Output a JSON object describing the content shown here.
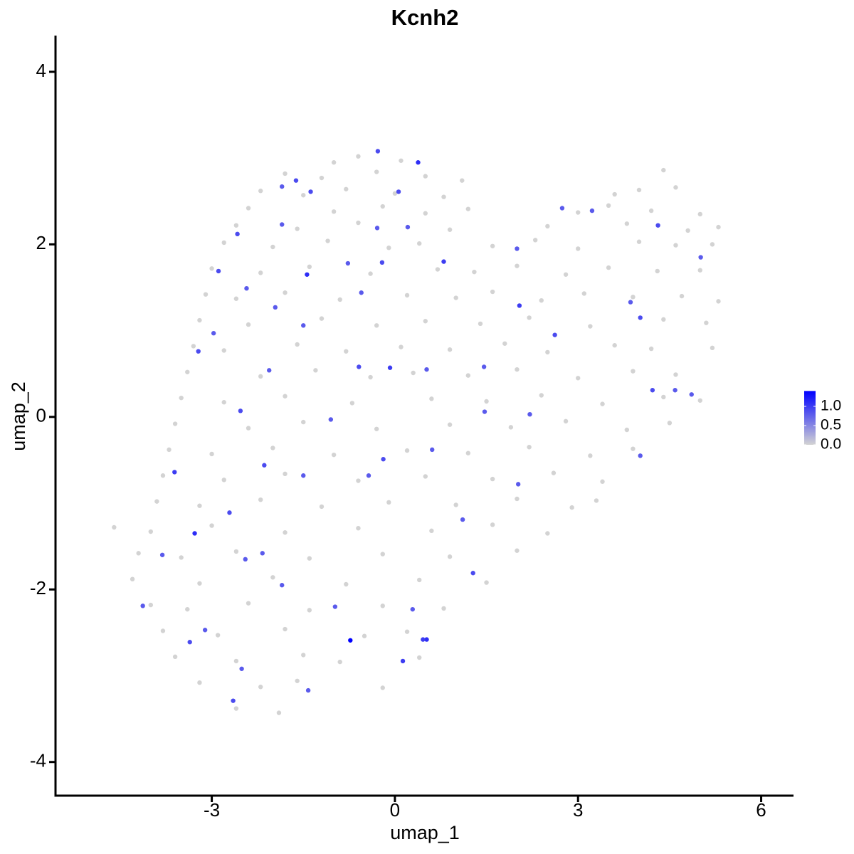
{
  "chart_data": {
    "type": "scatter",
    "title": "Kcnh2",
    "x_label": "umap_1",
    "y_label": "umap_2",
    "xlim": [
      -5.56,
      6.53
    ],
    "ylim": [
      -4.39,
      4.42
    ],
    "xticks": [
      -3,
      0,
      3,
      6
    ],
    "yticks": [
      -4,
      -2,
      0,
      2,
      4
    ],
    "colors": [
      "#d3d3d3",
      "#0000ff"
    ],
    "color_lim": [
      0,
      1.4
    ],
    "color_ticks": [
      {
        "value": 0,
        "label": "0.0"
      },
      {
        "value": 0.5,
        "label": "0.5"
      },
      {
        "value": 1.0,
        "label": "1.0"
      }
    ],
    "x": [
      -0.6,
      0.1,
      -1.0,
      -1.8,
      -1.2,
      -0.3,
      0.5,
      1.1,
      4.4,
      -2.2,
      -1.5,
      -0.8,
      0.0,
      0.8,
      3.6,
      4.0,
      4.6,
      -2.4,
      -1.0,
      -0.2,
      0.5,
      1.2,
      3.0,
      3.5,
      4.2,
      5.0,
      -2.6,
      -1.6,
      -0.6,
      0.9,
      2.5,
      3.8,
      4.8,
      5.3,
      -2.8,
      -2.0,
      -1.1,
      -0.1,
      0.4,
      1.6,
      2.3,
      3.0,
      4.0,
      4.6,
      5.2,
      -3.0,
      -2.2,
      -1.4,
      -0.4,
      0.7,
      1.3,
      2.0,
      2.8,
      3.5,
      4.3,
      5.0,
      -3.1,
      -2.6,
      -1.8,
      -0.9,
      0.2,
      1.0,
      1.6,
      2.4,
      3.1,
      3.9,
      4.7,
      5.3,
      -3.2,
      -2.4,
      -1.2,
      -0.3,
      0.5,
      1.4,
      2.2,
      3.2,
      4.4,
      5.1,
      -3.3,
      -2.8,
      -1.6,
      -0.8,
      0.1,
      0.9,
      1.8,
      2.5,
      3.6,
      4.2,
      5.2,
      -3.4,
      -2.2,
      -1.3,
      -0.4,
      0.3,
      1.2,
      2.0,
      3.0,
      3.9,
      4.6,
      -3.5,
      -2.8,
      -1.8,
      -0.7,
      0.6,
      1.5,
      2.4,
      3.4,
      4.4,
      5.0,
      -3.6,
      -2.4,
      -1.5,
      -0.3,
      0.9,
      1.9,
      2.8,
      3.8,
      4.5,
      -3.7,
      -3.0,
      -2.0,
      -1.0,
      0.2,
      1.2,
      2.2,
      3.2,
      3.9,
      -3.8,
      -2.8,
      -1.8,
      -0.6,
      0.5,
      1.6,
      2.6,
      3.4,
      -3.9,
      -3.2,
      -2.2,
      -1.2,
      -0.1,
      1.0,
      2.0,
      2.9,
      3.3,
      -4.6,
      -4.0,
      -3.0,
      -1.8,
      -0.6,
      0.6,
      1.6,
      2.5,
      -4.2,
      -3.5,
      -2.6,
      -1.4,
      -0.2,
      0.9,
      2.0,
      -4.3,
      -3.2,
      -2.0,
      -0.8,
      0.4,
      1.5,
      -4.0,
      -3.4,
      -2.4,
      -1.4,
      -0.2,
      0.8,
      -3.8,
      -2.9,
      -1.8,
      -0.5,
      0.2,
      -3.6,
      -2.6,
      -1.5,
      -0.9,
      0.4,
      -3.2,
      -2.2,
      -1.6,
      -0.2,
      -2.6,
      -1.9,
      -0.28,
      0.38,
      -1.62,
      -1.85,
      -1.38,
      0.06,
      -2.58,
      -1.85,
      -0.29,
      0.21,
      -2.89,
      -1.44,
      -0.77,
      -0.21,
      0.8,
      -2.43,
      -1.96,
      -1.5,
      -0.55,
      -3.22,
      -2.97,
      -2.06,
      -0.59,
      -0.08,
      0.52,
      1.46,
      -2.53,
      -1.05,
      -0.19,
      0.61,
      -3.61,
      -2.14,
      -1.5,
      -0.43,
      -3.28,
      -2.71,
      -2.45,
      -2.17,
      -1.85,
      -3.81,
      -4.13,
      -3.36,
      -3.11,
      -2.65,
      -2.51,
      -1.42,
      -0.73,
      0.13,
      0.52,
      0.46,
      1.28,
      1.11,
      2.02,
      2.21,
      2.62,
      2.04,
      2.0,
      2.74,
      3.23,
      4.02,
      3.86,
      4.31,
      5.01,
      4.86,
      4.59,
      4.02,
      4.22,
      1.47,
      -0.98,
      0.29
    ],
    "y": [
      3.02,
      2.97,
      2.95,
      2.82,
      2.77,
      2.84,
      2.79,
      2.74,
      2.86,
      2.62,
      2.57,
      2.64,
      2.59,
      2.55,
      2.58,
      2.63,
      2.66,
      2.42,
      2.38,
      2.44,
      2.36,
      2.41,
      2.37,
      2.45,
      2.39,
      2.35,
      2.22,
      2.18,
      2.25,
      2.17,
      2.21,
      2.24,
      2.16,
      2.2,
      2.02,
      1.97,
      2.04,
      1.96,
      2.01,
      1.98,
      2.05,
      1.95,
      2.03,
      1.99,
      2.0,
      1.72,
      1.67,
      1.74,
      1.66,
      1.71,
      1.68,
      1.75,
      1.65,
      1.73,
      1.69,
      1.7,
      1.42,
      1.37,
      1.44,
      1.36,
      1.41,
      1.38,
      1.45,
      1.35,
      1.43,
      1.39,
      1.4,
      1.34,
      1.12,
      1.07,
      1.14,
      1.06,
      1.11,
      1.08,
      1.15,
      1.05,
      1.13,
      1.09,
      0.82,
      0.77,
      0.84,
      0.76,
      0.81,
      0.78,
      0.85,
      0.75,
      0.83,
      0.79,
      0.8,
      0.52,
      0.47,
      0.54,
      0.46,
      0.51,
      0.48,
      0.55,
      0.45,
      0.53,
      0.49,
      0.22,
      0.17,
      0.24,
      0.16,
      0.21,
      0.18,
      0.25,
      0.15,
      0.23,
      0.19,
      -0.08,
      -0.13,
      -0.06,
      -0.14,
      -0.09,
      -0.12,
      -0.05,
      -0.15,
      -0.07,
      -0.38,
      -0.43,
      -0.36,
      -0.44,
      -0.39,
      -0.42,
      -0.35,
      -0.45,
      -0.37,
      -0.68,
      -0.73,
      -0.66,
      -0.74,
      -0.69,
      -0.72,
      -0.65,
      -0.75,
      -0.98,
      -1.03,
      -0.96,
      -1.04,
      -0.99,
      -1.02,
      -0.95,
      -1.05,
      -0.97,
      -1.28,
      -1.33,
      -1.26,
      -1.34,
      -1.29,
      -1.32,
      -1.25,
      -1.35,
      -1.58,
      -1.63,
      -1.56,
      -1.64,
      -1.59,
      -1.62,
      -1.55,
      -1.88,
      -1.93,
      -1.86,
      -1.94,
      -1.89,
      -1.92,
      -2.18,
      -2.23,
      -2.16,
      -2.24,
      -2.19,
      -2.22,
      -2.48,
      -2.53,
      -2.46,
      -2.54,
      -2.49,
      -2.78,
      -2.83,
      -2.76,
      -2.84,
      -2.79,
      -3.08,
      -3.13,
      -3.06,
      -3.14,
      -3.38,
      -3.43,
      3.08,
      2.95,
      2.74,
      2.67,
      2.61,
      2.61,
      2.12,
      2.23,
      2.19,
      2.2,
      1.69,
      1.65,
      1.78,
      1.79,
      1.8,
      1.49,
      1.27,
      1.06,
      1.44,
      0.76,
      0.97,
      0.54,
      0.58,
      0.57,
      0.55,
      0.58,
      0.07,
      -0.03,
      -0.49,
      -0.38,
      -0.64,
      -0.56,
      -0.68,
      -0.68,
      -1.35,
      -1.11,
      -1.65,
      -1.58,
      -1.95,
      -1.6,
      -2.19,
      -2.61,
      -2.47,
      -3.29,
      -2.92,
      -3.17,
      -2.59,
      -2.83,
      -2.58,
      -2.58,
      -1.81,
      -1.19,
      -0.78,
      0.03,
      0.95,
      1.29,
      1.95,
      2.42,
      2.39,
      1.15,
      1.33,
      2.22,
      1.85,
      0.26,
      0.31,
      -0.45,
      0.31,
      0.06,
      -2.2,
      -2.23
    ],
    "color_values": [
      0,
      0,
      0,
      0,
      0,
      0,
      0,
      0,
      0,
      0,
      0,
      0,
      0,
      0,
      0,
      0,
      0,
      0,
      0,
      0,
      0,
      0,
      0,
      0,
      0,
      0,
      0,
      0,
      0,
      0,
      0,
      0,
      0,
      0,
      0,
      0,
      0,
      0,
      0,
      0,
      0,
      0,
      0,
      0,
      0,
      0,
      0,
      0,
      0,
      0,
      0,
      0,
      0,
      0,
      0,
      0,
      0,
      0,
      0,
      0,
      0,
      0,
      0,
      0,
      0,
      0,
      0,
      0,
      0,
      0,
      0,
      0,
      0,
      0,
      0,
      0,
      0,
      0,
      0,
      0,
      0,
      0,
      0,
      0,
      0,
      0,
      0,
      0,
      0,
      0,
      0,
      0,
      0,
      0,
      0,
      0,
      0,
      0,
      0,
      0,
      0,
      0,
      0,
      0,
      0,
      0,
      0,
      0,
      0,
      0,
      0,
      0,
      0,
      0,
      0,
      0,
      0,
      0,
      0,
      0,
      0,
      0,
      0,
      0,
      0,
      0,
      0,
      0,
      0,
      0,
      0,
      0,
      0,
      0,
      0,
      0,
      0,
      0,
      0,
      0,
      0,
      0,
      0,
      0,
      0,
      0,
      0,
      0,
      0,
      0,
      0,
      0,
      0,
      0,
      0,
      0,
      0,
      0,
      0,
      0,
      0,
      0,
      0,
      0,
      0,
      0,
      0,
      0,
      0,
      0,
      0,
      0,
      0,
      0,
      0,
      0,
      0,
      0,
      0,
      0,
      0,
      0,
      0,
      0,
      0,
      0,
      0,
      0.9,
      1.1,
      0.9,
      0.8,
      0.9,
      0.9,
      0.9,
      0.8,
      0.8,
      0.8,
      0.9,
      1.1,
      0.8,
      0.9,
      1.0,
      0.8,
      0.8,
      0.8,
      0.8,
      0.9,
      0.8,
      0.8,
      0.9,
      1.0,
      0.8,
      0.8,
      0.9,
      0.8,
      0.9,
      0.8,
      1.0,
      0.9,
      0.8,
      0.8,
      1.1,
      0.9,
      0.8,
      0.8,
      0.8,
      0.8,
      0.8,
      0.9,
      0.8,
      0.9,
      0.8,
      0.8,
      1.4,
      1.0,
      1.1,
      1.0,
      0.9,
      0.8,
      0.8,
      0.8,
      0.9,
      1.0,
      0.8,
      0.8,
      0.8,
      0.9,
      0.8,
      0.9,
      0.8,
      0.8,
      0.8,
      0.8,
      0.9,
      0.8,
      0.8,
      0.8
    ]
  }
}
